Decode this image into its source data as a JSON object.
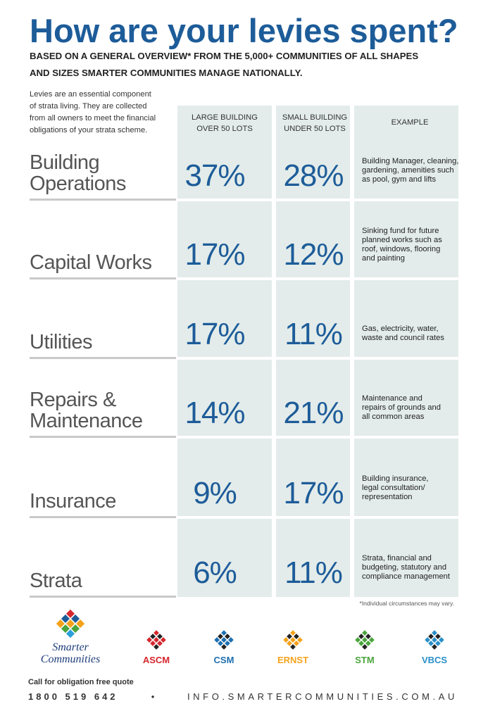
{
  "header": {
    "title": "How are your levies spent?",
    "subtitle": [
      "BASED ON A GENERAL OVERVIEW* FROM THE 5,000+ COMMUNITIES OF ALL SHAPES",
      "AND SIZES SMARTER COMMUNITIES MANAGE NATIONALLY."
    ]
  },
  "intro": [
    "Levies are an essential component",
    "of strata living. They are collected",
    "from all owners to meet the financial",
    "obligations of your strata scheme."
  ],
  "table": {
    "columns": [
      [
        "LARGE BUILDING",
        "OVER 50 LOTS"
      ],
      [
        "SMALL BUILDING",
        "UNDER 50 LOTS"
      ],
      [
        "EXAMPLE"
      ]
    ],
    "rows": [
      {
        "label": [
          "Building",
          "Operations"
        ],
        "large": "37%",
        "small": "28%",
        "example": [
          "Building Manager, cleaning,",
          "gardening, amenities such",
          "as pool, gym and lifts"
        ]
      },
      {
        "label": [
          "Capital Works"
        ],
        "large": "17%",
        "small": "12%",
        "example": [
          "Sinking fund for future",
          "planned works such as",
          "roof, windows, flooring",
          "and painting"
        ]
      },
      {
        "label": [
          "Utilities"
        ],
        "large": "17%",
        "small": "11%",
        "example": [
          "Gas, electricity, water,",
          "waste and council rates"
        ]
      },
      {
        "label": [
          "Repairs &",
          "Maintenance"
        ],
        "large": "14%",
        "small": "21%",
        "example": [
          "Maintenance and",
          "repairs of grounds and",
          "all common areas"
        ]
      },
      {
        "label": [
          "Insurance"
        ],
        "large": "9%",
        "small": "17%",
        "example": [
          "Building insurance,",
          "legal consultation/",
          "representation"
        ]
      },
      {
        "label": [
          "Strata"
        ],
        "large": "6%",
        "small": "11%",
        "example": [
          "Strata, financial and",
          "budgeting, statutory and",
          "compliance management"
        ]
      }
    ],
    "footnote": "*Individual circumstances may vary."
  },
  "logos": {
    "main": [
      "Smarter",
      "Communities"
    ],
    "brands": [
      "ASCM",
      "CSM",
      "ERNST",
      "STM",
      "VBCS"
    ]
  },
  "footer": {
    "cta": "Call for obligation free quote",
    "phone": "1800 519 642",
    "separator": "•",
    "website": "INFO.SMARTERCOMMUNITIES.COM.AU"
  }
}
